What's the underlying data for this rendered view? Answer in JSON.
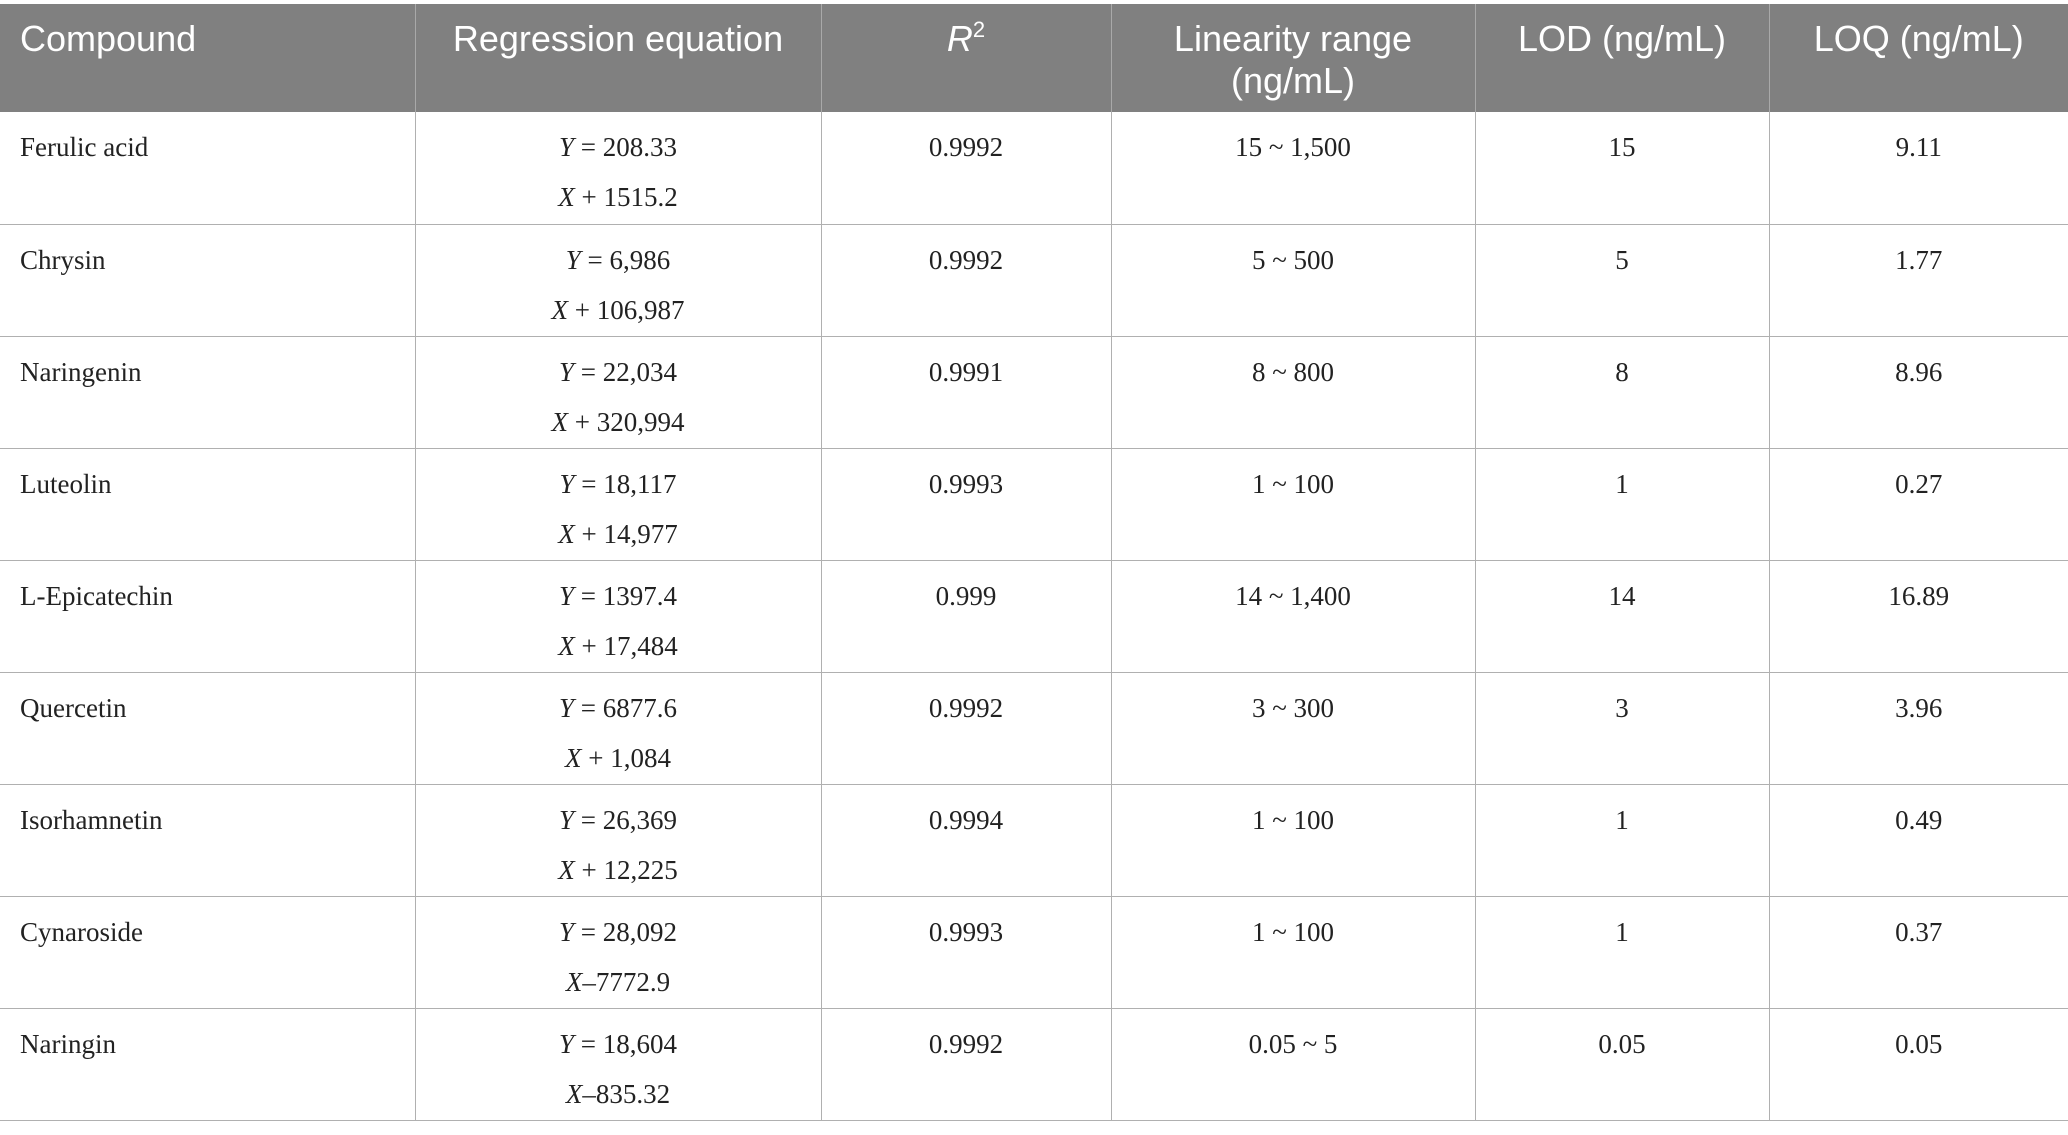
{
  "table": {
    "headers": [
      "Compound",
      "Regression equation",
      "R",
      "Linearity range (ng/mL)",
      "LOD (ng/mL)",
      "LOQ (ng/mL)"
    ],
    "r2_superscript": "2",
    "rows": [
      {
        "compound": "Ferulic acid",
        "eq_y": "Y = 208.33",
        "eq_x": "X + 1515.2",
        "r2": "0.9992",
        "range": "15 ~ 1,500",
        "lod": "15",
        "loq": "9.11"
      },
      {
        "compound": "Chrysin",
        "eq_y": "Y = 6,986",
        "eq_x": "X + 106,987",
        "r2": "0.9992",
        "range": "5 ~ 500",
        "lod": "5",
        "loq": "1.77"
      },
      {
        "compound": "Naringenin",
        "eq_y": "Y = 22,034",
        "eq_x": "X + 320,994",
        "r2": "0.9991",
        "range": "8 ~ 800",
        "lod": "8",
        "loq": "8.96"
      },
      {
        "compound": "Luteolin",
        "eq_y": "Y = 18,117",
        "eq_x": "X + 14,977",
        "r2": "0.9993",
        "range": "1 ~ 100",
        "lod": "1",
        "loq": "0.27"
      },
      {
        "compound": "L-Epicatechin",
        "eq_y": "Y = 1397.4",
        "eq_x": "X + 17,484",
        "r2": "0.999",
        "range": "14 ~ 1,400",
        "lod": "14",
        "loq": "16.89"
      },
      {
        "compound": "Quercetin",
        "eq_y": "Y = 6877.6",
        "eq_x": "X + 1,084",
        "r2": "0.9992",
        "range": "3 ~ 300",
        "lod": "3",
        "loq": "3.96"
      },
      {
        "compound": "Isorhamnetin",
        "eq_y": "Y = 26,369",
        "eq_x": "X + 12,225",
        "r2": "0.9994",
        "range": "1 ~ 100",
        "lod": "1",
        "loq": "0.49"
      },
      {
        "compound": "Cynaroside",
        "eq_y": "Y = 28,092",
        "eq_x": "X–7772.9",
        "r2": "0.9993",
        "range": "1 ~ 100",
        "lod": "1",
        "loq": "0.37"
      },
      {
        "compound": "Naringin",
        "eq_y": "Y = 18,604",
        "eq_x": "X–835.32",
        "r2": "0.9992",
        "range": "0.05 ~ 5",
        "lod": "0.05",
        "loq": "0.05"
      }
    ]
  }
}
